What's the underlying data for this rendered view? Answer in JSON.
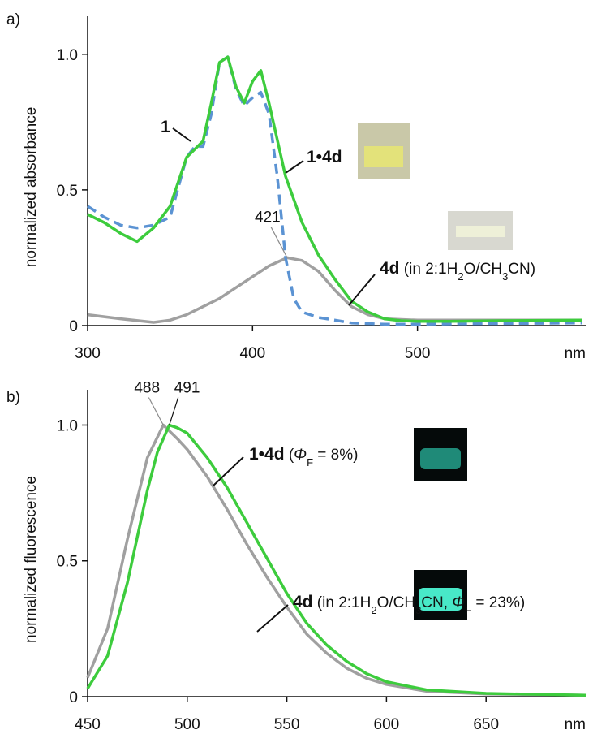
{
  "chart_data": [
    {
      "type": "line",
      "panel": "a)",
      "ylabel": "normalized absorbance",
      "xunit": "nm",
      "xlim": [
        300,
        602
      ],
      "ylim": [
        0,
        1.14
      ],
      "xticks": [
        300,
        400,
        500
      ],
      "yticks": [
        0,
        0.5,
        {
          "value": 1,
          "label": "1.0"
        }
      ],
      "series": [
        {
          "label": [
            {
              "text": "1•4d",
              "style": "b"
            }
          ],
          "color": "#3dcc3d",
          "dash": false,
          "x": [
            300,
            310,
            320,
            330,
            340,
            350,
            360,
            370,
            375,
            380,
            385,
            390,
            395,
            400,
            405,
            410,
            420,
            430,
            440,
            450,
            460,
            470,
            480,
            490,
            500,
            520,
            550,
            600
          ],
          "values": [
            0.41,
            0.38,
            0.34,
            0.31,
            0.36,
            0.44,
            0.62,
            0.68,
            0.82,
            0.97,
            0.99,
            0.88,
            0.82,
            0.9,
            0.94,
            0.82,
            0.55,
            0.38,
            0.26,
            0.17,
            0.09,
            0.05,
            0.025,
            0.018,
            0.016,
            0.016,
            0.018,
            0.02
          ]
        },
        {
          "label": [
            {
              "text": "1",
              "style": "b"
            }
          ],
          "color": "#5b93d3",
          "dash": true,
          "x": [
            300,
            310,
            320,
            330,
            340,
            350,
            360,
            365,
            370,
            375,
            380,
            385,
            390,
            395,
            400,
            405,
            410,
            415,
            420,
            425,
            430,
            440,
            450,
            460,
            480,
            500,
            600
          ],
          "values": [
            0.44,
            0.4,
            0.37,
            0.36,
            0.37,
            0.4,
            0.62,
            0.66,
            0.66,
            0.78,
            0.97,
            0.99,
            0.87,
            0.81,
            0.84,
            0.86,
            0.78,
            0.55,
            0.25,
            0.1,
            0.05,
            0.03,
            0.02,
            0.01,
            0.005,
            0.005,
            0.01
          ]
        },
        {
          "label": [
            {
              "text": "4d",
              "style": "b"
            },
            {
              "text": " (in 2:1H",
              "style": ""
            },
            {
              "text": "2",
              "style": "sub"
            },
            {
              "text": "O/CH",
              "style": ""
            },
            {
              "text": "3",
              "style": "sub"
            },
            {
              "text": "CN)",
              "style": ""
            }
          ],
          "color": "#a0a0a0",
          "dash": false,
          "x": [
            300,
            320,
            340,
            350,
            360,
            380,
            400,
            410,
            421,
            430,
            440,
            450,
            460,
            470,
            480,
            500,
            550,
            600
          ],
          "values": [
            0.04,
            0.025,
            0.012,
            0.02,
            0.04,
            0.1,
            0.18,
            0.22,
            0.25,
            0.24,
            0.2,
            0.13,
            0.07,
            0.04,
            0.025,
            0.02,
            0.02,
            0.02
          ]
        }
      ],
      "annotations": [
        {
          "text": "421",
          "x": 421,
          "y": 0.25,
          "color": "#8a8a8a"
        }
      ]
    },
    {
      "type": "line",
      "panel": "b)",
      "ylabel": "normalized fluorescence",
      "xunit": "nm",
      "xlim": [
        450,
        700
      ],
      "ylim": [
        0,
        1.13
      ],
      "xticks": [
        450,
        500,
        550,
        600,
        650
      ],
      "yticks": [
        0,
        0.5,
        {
          "value": 1,
          "label": "1.0"
        }
      ],
      "series": [
        {
          "label": [
            {
              "text": "1•4d",
              "style": "b"
            },
            {
              "text": " (",
              "style": ""
            },
            {
              "text": "Φ",
              "style": "i"
            },
            {
              "text": "F",
              "style": "sub"
            },
            {
              "text": " = 8%)",
              "style": ""
            }
          ],
          "color": "#3dcc3d",
          "dash": false,
          "x": [
            450,
            460,
            470,
            480,
            485,
            491,
            495,
            500,
            510,
            520,
            530,
            540,
            550,
            560,
            570,
            580,
            590,
            600,
            620,
            650,
            700
          ],
          "values": [
            0.03,
            0.15,
            0.42,
            0.76,
            0.9,
            1.0,
            0.99,
            0.97,
            0.88,
            0.77,
            0.64,
            0.51,
            0.38,
            0.27,
            0.19,
            0.13,
            0.085,
            0.055,
            0.025,
            0.012,
            0.005
          ]
        },
        {
          "label": [
            {
              "text": "4d",
              "style": "b"
            },
            {
              "text": " (in 2:1H",
              "style": ""
            },
            {
              "text": "2",
              "style": "sub"
            },
            {
              "text": "O/CH",
              "style": ""
            },
            {
              "text": "3",
              "style": "sub"
            },
            {
              "text": "CN, ",
              "style": ""
            },
            {
              "text": "Φ",
              "style": "i"
            },
            {
              "text": "F",
              "style": "sub"
            },
            {
              "text": " = 23%)",
              "style": ""
            }
          ],
          "color": "#a0a0a0",
          "dash": false,
          "x": [
            450,
            460,
            470,
            480,
            488,
            495,
            500,
            510,
            520,
            530,
            540,
            550,
            560,
            570,
            580,
            590,
            600,
            620,
            650,
            700
          ],
          "values": [
            0.07,
            0.25,
            0.58,
            0.88,
            1.0,
            0.95,
            0.91,
            0.81,
            0.69,
            0.56,
            0.44,
            0.33,
            0.23,
            0.16,
            0.105,
            0.068,
            0.045,
            0.02,
            0.01,
            0.005
          ]
        }
      ],
      "annotations": [
        {
          "text": "488",
          "x": 488,
          "y": 1.0,
          "color": "#8a8a8a"
        },
        {
          "text": "491",
          "x": 491,
          "y": 1.0,
          "color": "#111111"
        }
      ]
    }
  ]
}
